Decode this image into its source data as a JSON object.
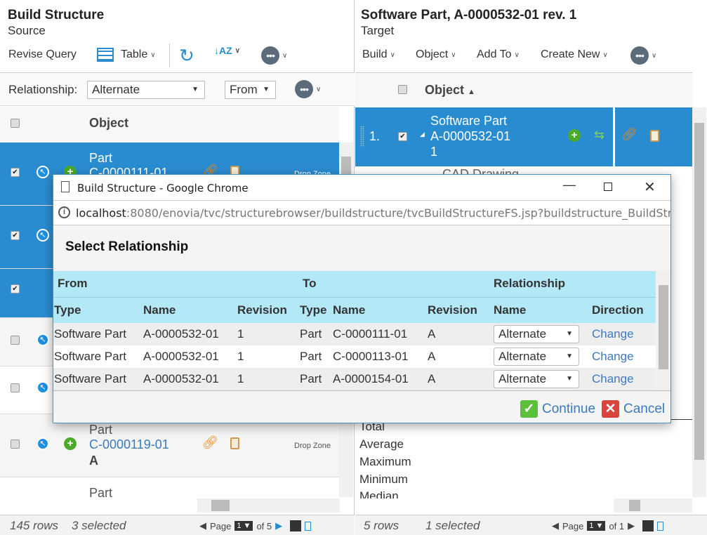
{
  "left": {
    "title": "Build Structure",
    "subtitle": "Source",
    "toolbar": {
      "revise": "Revise Query",
      "table": "Table"
    },
    "relationship_label": "Relationship:",
    "relationship_value": "Alternate",
    "direction_value": "From",
    "column_object": "Object",
    "rows": [
      {
        "type": "Part",
        "name": "C-0000111-01",
        "drop": "Drop Zone",
        "checked": true
      },
      {
        "checked": true
      },
      {
        "checked": true
      },
      {
        "checked": false
      },
      {
        "checked": false
      },
      {
        "type": "Part",
        "name": "C-0000119-01",
        "rev": "A",
        "drop": "Drop Zone",
        "checked": false
      },
      {
        "type": "Part"
      }
    ],
    "footer": {
      "rows": "145 rows",
      "selected": "3 selected",
      "page_label": "Page",
      "page": "1",
      "of": "of 5"
    }
  },
  "right": {
    "title": "Software Part, A-0000532-01 rev. 1",
    "subtitle": "Target",
    "toolbar": [
      "Build",
      "Object",
      "Add To",
      "Create New"
    ],
    "column_object": "Object",
    "row1": {
      "index": "1.",
      "type": "Software Part",
      "name": "A-0000532-01",
      "rev": "1"
    },
    "row2_partial": "CAD Drawing",
    "summary": [
      "Total",
      "Average",
      "Maximum",
      "Minimum",
      "Median"
    ],
    "footer": {
      "rows": "5 rows",
      "selected": "1 selected",
      "page_label": "Page",
      "page": "1",
      "of": "of 1"
    }
  },
  "dialog": {
    "window_title": "Build Structure - Google Chrome",
    "url_host": "localhost",
    "url_rest": ":8080/enovia/tvc/structurebrowser/buildstructure/tvcBuildStructureFS.jsp?buildstructure_BuildStru...",
    "heading": "Select Relationship",
    "groups": [
      "From",
      "To",
      "Relationship"
    ],
    "columns": [
      "Type",
      "Name",
      "Revision",
      "Type",
      "Name",
      "Revision",
      "Name",
      "Direction"
    ],
    "rows": [
      {
        "from_type": "Software Part",
        "from_name": "A-0000532-01",
        "from_rev": "1",
        "to_type": "Part",
        "to_name": "C-0000111-01",
        "to_rev": "A",
        "rel": "Alternate",
        "dir": "Change"
      },
      {
        "from_type": "Software Part",
        "from_name": "A-0000532-01",
        "from_rev": "1",
        "to_type": "Part",
        "to_name": "C-0000113-01",
        "to_rev": "A",
        "rel": "Alternate",
        "dir": "Change"
      },
      {
        "from_type": "Software Part",
        "from_name": "A-0000532-01",
        "from_rev": "1",
        "to_type": "Part",
        "to_name": "A-0000154-01",
        "to_rev": "A",
        "rel": "Alternate",
        "dir": "Change"
      }
    ],
    "continue": "Continue",
    "cancel": "Cancel"
  }
}
